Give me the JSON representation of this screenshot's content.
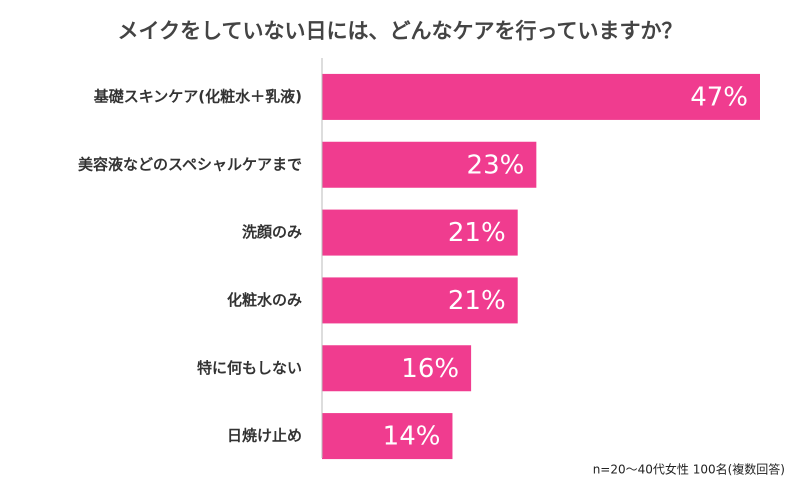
{
  "chart_data": {
    "type": "bar",
    "orientation": "horizontal",
    "title": "メイクをしていない日には、どんなケアを行っていますか？",
    "categories": [
      "基礎スキンケア(化粧水＋乳液)",
      "美容液などのスペシャルケアまで",
      "洗顔のみ",
      "化粧水のみ",
      "特に何もしない",
      "日焼け止め"
    ],
    "values": [
      47,
      23,
      21,
      21,
      16,
      14
    ],
    "value_labels": [
      "47%",
      "23%",
      "21%",
      "21%",
      "16%",
      "14%"
    ],
    "color": "#f03c8f",
    "xlim": [
      0,
      47
    ],
    "note": "n=20～40代女性 100名(複数回答)"
  }
}
